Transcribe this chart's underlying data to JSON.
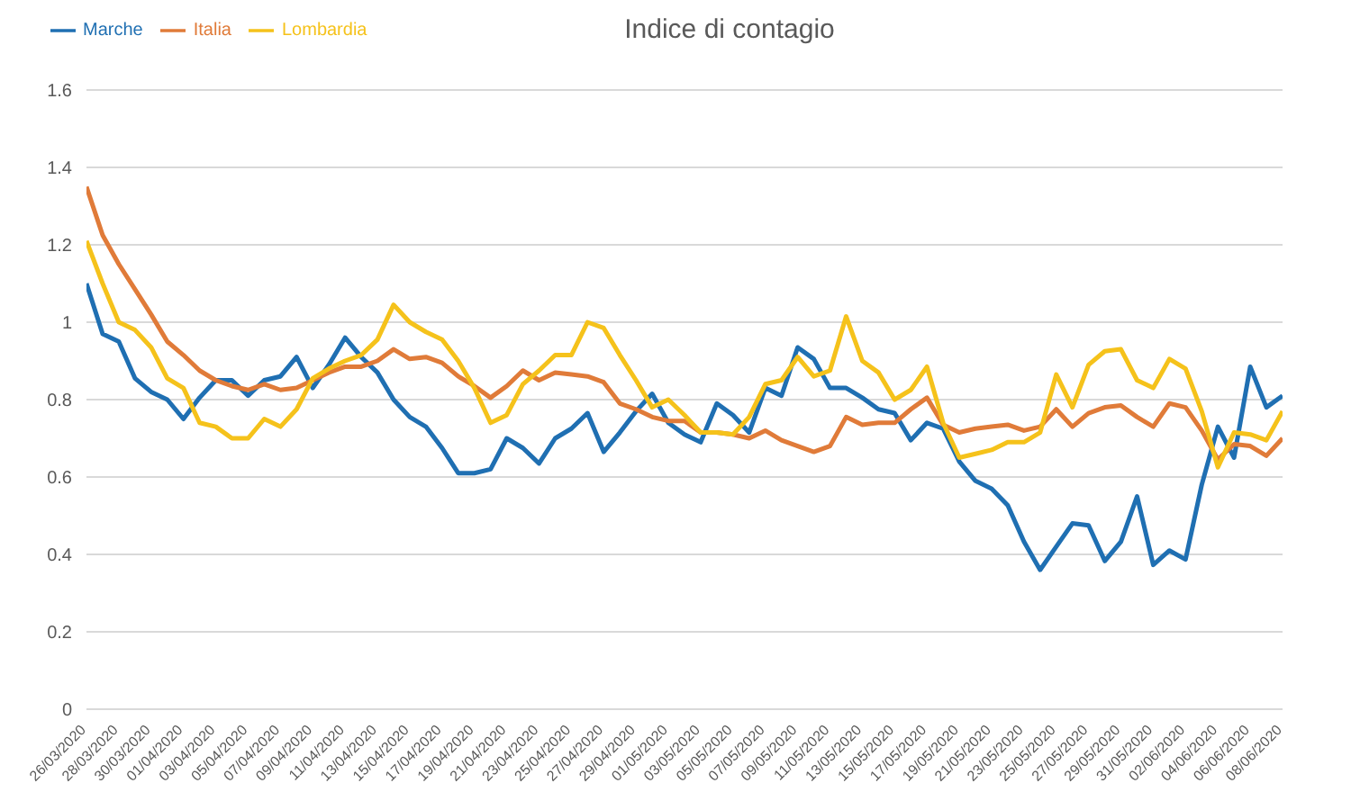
{
  "chart_data": {
    "type": "line",
    "title": "Indice di contagio",
    "categories": [
      "26/03/2020",
      null,
      "28/03/2020",
      null,
      "30/03/2020",
      null,
      "01/04/2020",
      null,
      "03/04/2020",
      null,
      "05/04/2020",
      null,
      "07/04/2020",
      null,
      "09/04/2020",
      null,
      "11/04/2020",
      null,
      "13/04/2020",
      null,
      "15/04/2020",
      null,
      "17/04/2020",
      null,
      "19/04/2020",
      null,
      "21/04/2020",
      null,
      "23/04/2020",
      null,
      "25/04/2020",
      null,
      "27/04/2020",
      null,
      "29/04/2020",
      null,
      "01/05/2020",
      null,
      "03/05/2020",
      null,
      "05/05/2020",
      null,
      "07/05/2020",
      null,
      "09/05/2020",
      null,
      "11/05/2020",
      null,
      "13/05/2020",
      null,
      "15/05/2020",
      null,
      "17/05/2020",
      null,
      "19/05/2020",
      null,
      "21/05/2020",
      null,
      "23/05/2020",
      null,
      "25/05/2020",
      null,
      "27/05/2020",
      null,
      "29/05/2020",
      null,
      "31/05/2020",
      null,
      "02/06/2020",
      null,
      "04/06/2020",
      null,
      "06/06/2020",
      null,
      "08/06/2020"
    ],
    "series": [
      {
        "name": "Marche",
        "color": "#1f6fb2",
        "values": [
          1.1,
          0.97,
          0.95,
          0.855,
          0.82,
          0.8,
          0.75,
          0.805,
          0.85,
          0.85,
          0.81,
          0.85,
          0.86,
          0.91,
          0.83,
          0.89,
          0.96,
          0.91,
          0.87,
          0.8,
          0.755,
          0.73,
          0.675,
          0.61,
          0.61,
          0.62,
          0.7,
          0.675,
          0.635,
          0.7,
          0.725,
          0.765,
          0.665,
          0.715,
          0.77,
          0.815,
          0.74,
          0.71,
          0.69,
          0.79,
          0.76,
          0.715,
          0.83,
          0.81,
          0.935,
          0.905,
          0.83,
          0.83,
          0.805,
          0.775,
          0.765,
          0.695,
          0.74,
          0.725,
          0.64,
          0.59,
          0.57,
          0.527,
          0.433,
          0.36,
          0.42,
          0.48,
          0.475,
          0.383,
          0.433,
          0.55,
          0.373,
          0.41,
          0.387,
          0.58,
          0.73,
          0.65,
          0.885,
          0.78,
          0.81
        ]
      },
      {
        "name": "Italia",
        "color": "#e07b39",
        "values": [
          1.35,
          1.225,
          1.15,
          1.085,
          1.02,
          0.95,
          0.915,
          0.875,
          0.85,
          0.835,
          0.825,
          0.84,
          0.825,
          0.83,
          0.85,
          0.87,
          0.885,
          0.885,
          0.9,
          0.93,
          0.905,
          0.91,
          0.895,
          0.86,
          0.835,
          0.805,
          0.835,
          0.875,
          0.85,
          0.87,
          0.865,
          0.86,
          0.845,
          0.79,
          0.775,
          0.755,
          0.745,
          0.745,
          0.715,
          0.715,
          0.71,
          0.7,
          0.72,
          0.695,
          0.68,
          0.665,
          0.68,
          0.755,
          0.735,
          0.74,
          0.74,
          0.775,
          0.805,
          0.735,
          0.715,
          0.725,
          0.73,
          0.735,
          0.72,
          0.73,
          0.775,
          0.73,
          0.765,
          0.78,
          0.785,
          0.755,
          0.73,
          0.79,
          0.78,
          0.72,
          0.645,
          0.685,
          0.68,
          0.655,
          0.7
        ]
      },
      {
        "name": "Lombardia",
        "color": "#f5c21b",
        "values": [
          1.21,
          1.1,
          1.0,
          0.98,
          0.935,
          0.855,
          0.83,
          0.74,
          0.73,
          0.7,
          0.7,
          0.75,
          0.73,
          0.775,
          0.855,
          0.88,
          0.9,
          0.915,
          0.955,
          1.045,
          1.0,
          0.975,
          0.955,
          0.9,
          0.83,
          0.74,
          0.76,
          0.84,
          0.875,
          0.915,
          0.915,
          1.0,
          0.985,
          0.915,
          0.85,
          0.78,
          0.8,
          0.76,
          0.715,
          0.715,
          0.71,
          0.755,
          0.84,
          0.85,
          0.91,
          0.86,
          0.875,
          1.015,
          0.9,
          0.87,
          0.8,
          0.825,
          0.885,
          0.74,
          0.65,
          0.66,
          0.67,
          0.69,
          0.69,
          0.715,
          0.865,
          0.78,
          0.89,
          0.925,
          0.93,
          0.85,
          0.83,
          0.905,
          0.88,
          0.77,
          0.625,
          0.715,
          0.71,
          0.695,
          0.77
        ]
      }
    ],
    "ylim": [
      0,
      1.6
    ],
    "yticks": [
      0,
      0.2,
      0.4,
      0.6,
      0.8,
      1,
      1.2,
      1.4,
      1.6
    ],
    "grid": "y",
    "legend": "top left",
    "marker": "none",
    "line_style": "solid"
  }
}
